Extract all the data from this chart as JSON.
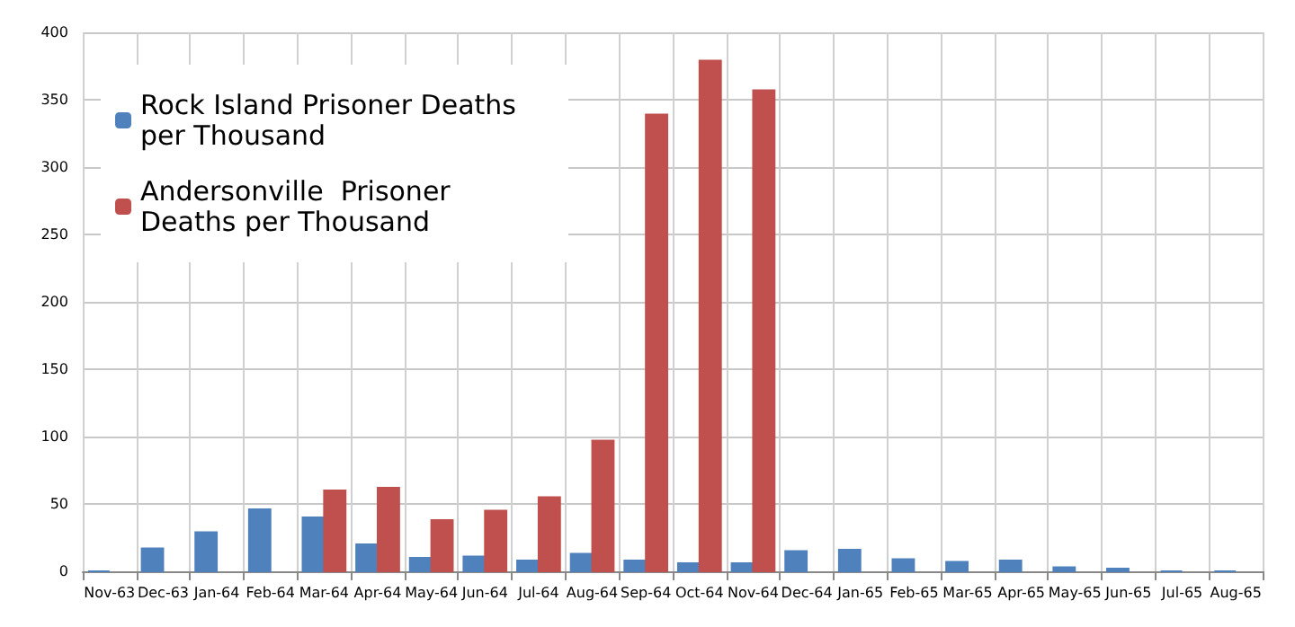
{
  "chart_data": {
    "type": "bar",
    "categories": [
      "Nov-63",
      "Dec-63",
      "Jan-64",
      "Feb-64",
      "Mar-64",
      "Apr-64",
      "May-64",
      "Jun-64",
      "Jul-64",
      "Aug-64",
      "Sep-64",
      "Oct-64",
      "Nov-64",
      "Dec-64",
      "Jan-65",
      "Feb-65",
      "Mar-65",
      "Apr-65",
      "May-65",
      "Jun-65",
      "Jul-65",
      "Aug-65"
    ],
    "series": [
      {
        "name": "Rock Island Prisoner Deaths per Thousand",
        "color": "#4f81bd",
        "values": [
          0,
          17,
          29,
          46,
          40,
          20,
          10,
          11,
          8,
          13,
          8,
          6,
          6,
          15,
          16,
          9,
          7,
          8,
          3,
          2,
          0,
          0
        ]
      },
      {
        "name": "Andersonville  Prisoner Deaths per Thousand",
        "color": "#c0504d",
        "values": [
          null,
          null,
          null,
          null,
          60,
          62,
          38,
          45,
          55,
          97,
          339,
          379,
          357,
          null,
          null,
          null,
          null,
          null,
          null,
          null,
          null,
          null
        ]
      }
    ],
    "ylim": [
      0,
      400
    ],
    "yticks": [
      0,
      50,
      100,
      150,
      200,
      250,
      300,
      350,
      400
    ],
    "grid": true,
    "legend": "top left"
  }
}
